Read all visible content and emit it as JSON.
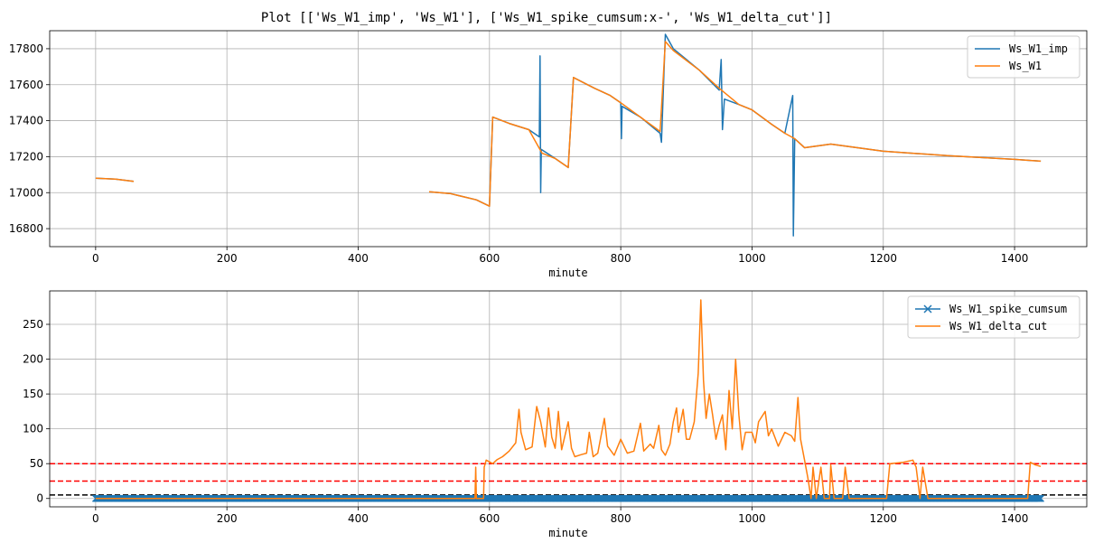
{
  "figure_title": "Plot [['Ws_W1_imp', 'Ws_W1'], ['Ws_W1_spike_cumsum:x-', 'Ws_W1_delta_cut']]",
  "colors": {
    "blue": "#1f77b4",
    "orange": "#ff7f0e",
    "red_line": "#ff0000",
    "black_line": "#000000",
    "grid": "#b0b0b0"
  },
  "chart_data": [
    {
      "type": "line",
      "title": "",
      "xlabel": "minute",
      "ylabel": "",
      "xlim": [
        -70,
        1510
      ],
      "ylim": [
        16700,
        17900
      ],
      "xticks": [
        0,
        200,
        400,
        600,
        800,
        1000,
        1200,
        1400
      ],
      "yticks": [
        16800,
        17000,
        17200,
        17400,
        17600,
        17800
      ],
      "grid": true,
      "legend": "upper right",
      "series": [
        {
          "name": "Ws_W1_imp",
          "color": "#1f77b4",
          "segments": [
            [
              [
                0,
                17080
              ],
              [
                30,
                17075
              ],
              [
                58,
                17063
              ]
            ],
            [
              [
                508,
                17005
              ],
              [
                540,
                16995
              ],
              [
                580,
                16960
              ],
              [
                600,
                16925
              ],
              [
                605,
                17420
              ],
              [
                630,
                17385
              ],
              [
                660,
                17350
              ],
              [
                676,
                17310
              ],
              [
                677,
                17760
              ],
              [
                678,
                17000
              ],
              [
                679,
                17240
              ],
              [
                700,
                17190
              ],
              [
                720,
                17140
              ],
              [
                728,
                17640
              ],
              [
                760,
                17580
              ],
              [
                784,
                17540
              ],
              [
                800,
                17500
              ],
              [
                801,
                17300
              ],
              [
                802,
                17480
              ],
              [
                830,
                17420
              ],
              [
                860,
                17330
              ],
              [
                862,
                17280
              ],
              [
                868,
                17880
              ],
              [
                880,
                17800
              ],
              [
                920,
                17680
              ],
              [
                950,
                17570
              ],
              [
                953,
                17740
              ],
              [
                955,
                17350
              ],
              [
                958,
                17520
              ],
              [
                980,
                17490
              ],
              [
                1000,
                17460
              ],
              [
                1030,
                17380
              ],
              [
                1050,
                17330
              ],
              [
                1062,
                17540
              ],
              [
                1063,
                16760
              ],
              [
                1065,
                17300
              ],
              [
                1080,
                17250
              ],
              [
                1120,
                17270
              ],
              [
                1200,
                17230
              ],
              [
                1300,
                17205
              ],
              [
                1400,
                17185
              ],
              [
                1440,
                17175
              ]
            ]
          ]
        },
        {
          "name": "Ws_W1",
          "color": "#ff7f0e",
          "segments": [
            [
              [
                0,
                17080
              ],
              [
                30,
                17075
              ],
              [
                58,
                17063
              ]
            ],
            [
              [
                508,
                17005
              ],
              [
                540,
                16995
              ],
              [
                580,
                16960
              ],
              [
                600,
                16925
              ],
              [
                605,
                17420
              ],
              [
                630,
                17385
              ],
              [
                660,
                17350
              ],
              [
                680,
                17220
              ],
              [
                700,
                17190
              ],
              [
                720,
                17140
              ],
              [
                728,
                17640
              ],
              [
                760,
                17580
              ],
              [
                784,
                17540
              ],
              [
                800,
                17500
              ],
              [
                830,
                17420
              ],
              [
                860,
                17340
              ],
              [
                868,
                17840
              ],
              [
                880,
                17790
              ],
              [
                920,
                17680
              ],
              [
                950,
                17580
              ],
              [
                980,
                17490
              ],
              [
                1000,
                17460
              ],
              [
                1030,
                17380
              ],
              [
                1050,
                17330
              ],
              [
                1065,
                17300
              ],
              [
                1080,
                17250
              ],
              [
                1120,
                17270
              ],
              [
                1200,
                17230
              ],
              [
                1300,
                17205
              ],
              [
                1400,
                17185
              ],
              [
                1440,
                17175
              ]
            ]
          ]
        }
      ]
    },
    {
      "type": "line",
      "title": "",
      "xlabel": "minute",
      "ylabel": "",
      "xlim": [
        -70,
        1510
      ],
      "ylim": [
        -12,
        298
      ],
      "xticks": [
        0,
        200,
        400,
        600,
        800,
        1000,
        1200,
        1400
      ],
      "yticks": [
        0,
        50,
        100,
        150,
        200,
        250
      ],
      "grid": true,
      "legend": "upper right",
      "hlines": [
        {
          "y": 50,
          "color": "#ff0000",
          "style": "dashed"
        },
        {
          "y": 25,
          "color": "#ff0000",
          "style": "dashed"
        },
        {
          "y": 5,
          "color": "#000000",
          "style": "dashed"
        }
      ],
      "series": [
        {
          "name": "Ws_W1_spike_cumsum",
          "color": "#1f77b4",
          "marker": "x",
          "x_range": [
            0,
            1440
          ],
          "x_step": 1,
          "value": 0
        },
        {
          "name": "Ws_W1_delta_cut",
          "color": "#ff7f0e",
          "points": [
            [
              0,
              0
            ],
            [
              578,
              0
            ],
            [
              579,
              45
            ],
            [
              580,
              0
            ],
            [
              591,
              0
            ],
            [
              592,
              45
            ],
            [
              595,
              55
            ],
            [
              605,
              50
            ],
            [
              612,
              56
            ],
            [
              620,
              60
            ],
            [
              630,
              68
            ],
            [
              640,
              80
            ],
            [
              645,
              128
            ],
            [
              648,
              95
            ],
            [
              655,
              70
            ],
            [
              665,
              74
            ],
            [
              672,
              132
            ],
            [
              678,
              110
            ],
            [
              685,
              74
            ],
            [
              690,
              130
            ],
            [
              695,
              88
            ],
            [
              700,
              72
            ],
            [
              705,
              125
            ],
            [
              710,
              70
            ],
            [
              720,
              110
            ],
            [
              725,
              72
            ],
            [
              730,
              60
            ],
            [
              740,
              63
            ],
            [
              748,
              65
            ],
            [
              752,
              95
            ],
            [
              758,
              60
            ],
            [
              765,
              65
            ],
            [
              775,
              115
            ],
            [
              780,
              75
            ],
            [
              790,
              62
            ],
            [
              800,
              85
            ],
            [
              810,
              65
            ],
            [
              820,
              68
            ],
            [
              830,
              108
            ],
            [
              835,
              68
            ],
            [
              845,
              78
            ],
            [
              850,
              72
            ],
            [
              858,
              105
            ],
            [
              862,
              70
            ],
            [
              868,
              62
            ],
            [
              875,
              78
            ],
            [
              880,
              110
            ],
            [
              885,
              130
            ],
            [
              888,
              95
            ],
            [
              895,
              128
            ],
            [
              900,
              85
            ],
            [
              905,
              85
            ],
            [
              912,
              110
            ],
            [
              918,
              180
            ],
            [
              922,
              285
            ],
            [
              926,
              170
            ],
            [
              930,
              115
            ],
            [
              935,
              150
            ],
            [
              940,
              120
            ],
            [
              945,
              85
            ],
            [
              950,
              105
            ],
            [
              955,
              120
            ],
            [
              960,
              70
            ],
            [
              965,
              155
            ],
            [
              970,
              100
            ],
            [
              975,
              200
            ],
            [
              980,
              120
            ],
            [
              985,
              70
            ],
            [
              990,
              95
            ],
            [
              1000,
              95
            ],
            [
              1005,
              80
            ],
            [
              1010,
              110
            ],
            [
              1020,
              125
            ],
            [
              1025,
              90
            ],
            [
              1030,
              100
            ],
            [
              1040,
              75
            ],
            [
              1050,
              95
            ],
            [
              1060,
              90
            ],
            [
              1065,
              82
            ],
            [
              1070,
              145
            ],
            [
              1074,
              85
            ],
            [
              1080,
              55
            ],
            [
              1085,
              30
            ],
            [
              1090,
              0
            ],
            [
              1093,
              45
            ],
            [
              1098,
              0
            ],
            [
              1105,
              45
            ],
            [
              1110,
              0
            ],
            [
              1118,
              0
            ],
            [
              1120,
              48
            ],
            [
              1125,
              0
            ],
            [
              1138,
              0
            ],
            [
              1142,
              45
            ],
            [
              1148,
              0
            ],
            [
              1160,
              0
            ],
            [
              1205,
              0
            ],
            [
              1210,
              50
            ],
            [
              1230,
              52
            ],
            [
              1245,
              55
            ],
            [
              1250,
              45
            ],
            [
              1256,
              0
            ],
            [
              1260,
              45
            ],
            [
              1268,
              0
            ],
            [
              1275,
              0
            ],
            [
              1420,
              0
            ],
            [
              1424,
              52
            ],
            [
              1432,
              48
            ],
            [
              1440,
              46
            ]
          ]
        }
      ]
    }
  ]
}
